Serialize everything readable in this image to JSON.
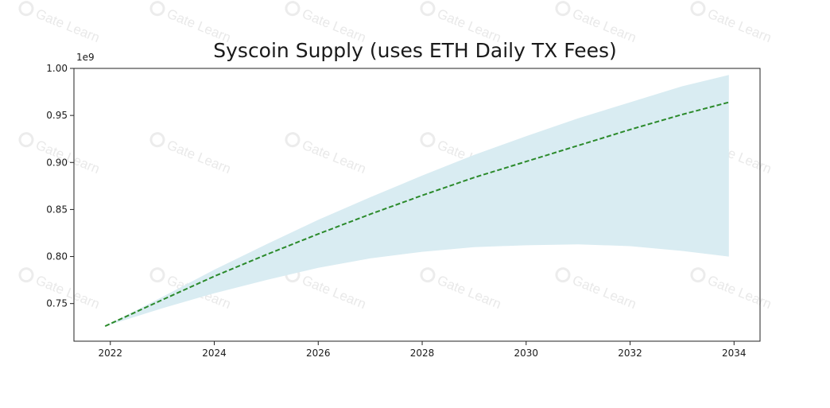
{
  "watermark": {
    "text": "Gate Learn",
    "icon": "gate-logo-icon"
  },
  "chart_data": {
    "type": "area",
    "title": "Syscoin Supply (uses ETH Daily TX Fees)",
    "xlabel": "",
    "ylabel": "",
    "y_offset_label": "1e9",
    "xlim": [
      2021.3,
      2034.5
    ],
    "ylim": [
      0.71,
      1.0
    ],
    "x_ticks": [
      2022,
      2024,
      2026,
      2028,
      2030,
      2032,
      2034
    ],
    "x_tick_labels": [
      "2022",
      "2024",
      "2026",
      "2028",
      "2030",
      "2032",
      "2034"
    ],
    "y_ticks": [
      0.75,
      0.8,
      0.85,
      0.9,
      0.95,
      1.0
    ],
    "y_tick_labels": [
      "0.75",
      "0.80",
      "0.85",
      "0.90",
      "0.95",
      "1.00"
    ],
    "grid": false,
    "legend": "none",
    "colors": {
      "mean_line": "#2b8a2b",
      "band_fill": "#d9ecf2"
    },
    "series": [
      {
        "style": "dashed-line",
        "x": [
          2021.9,
          2023,
          2024,
          2025,
          2026,
          2027,
          2028,
          2029,
          2030,
          2031,
          2032,
          2033,
          2033.9
        ],
        "values": [
          0.726,
          0.754,
          0.779,
          0.802,
          0.824,
          0.845,
          0.865,
          0.884,
          0.901,
          0.918,
          0.935,
          0.951,
          0.964
        ]
      },
      {
        "style": "band-upper",
        "x": [
          2021.9,
          2023,
          2024,
          2025,
          2026,
          2027,
          2028,
          2029,
          2030,
          2031,
          2032,
          2033,
          2033.9
        ],
        "values": [
          0.726,
          0.757,
          0.786,
          0.813,
          0.839,
          0.863,
          0.886,
          0.908,
          0.928,
          0.947,
          0.964,
          0.981,
          0.993
        ]
      },
      {
        "style": "band-lower",
        "x": [
          2021.9,
          2023,
          2024,
          2025,
          2026,
          2027,
          2028,
          2029,
          2030,
          2031,
          2032,
          2033,
          2033.9
        ],
        "values": [
          0.726,
          0.745,
          0.761,
          0.775,
          0.788,
          0.798,
          0.805,
          0.81,
          0.812,
          0.813,
          0.811,
          0.806,
          0.8
        ]
      }
    ]
  }
}
